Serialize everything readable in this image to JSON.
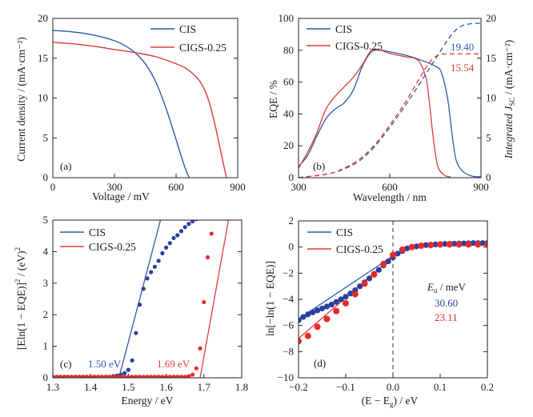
{
  "chart_data": [
    {
      "panel_label": "(a)",
      "type": "line",
      "xlabel": "Voltage / mV",
      "ylabel": "Current density / (mA·cm⁻²)",
      "xlim": [
        0,
        900
      ],
      "ylim": [
        0,
        20
      ],
      "xticks": [
        0,
        300,
        600,
        900
      ],
      "yticks": [
        0,
        5,
        10,
        15,
        20
      ],
      "legend_position": "top-right",
      "series": [
        {
          "name": "CIS",
          "color": "#2a5aa8",
          "x": [
            0,
            100,
            200,
            300,
            350,
            400,
            450,
            500,
            550,
            600,
            630,
            650,
            665
          ],
          "y": [
            18.5,
            18.3,
            17.9,
            17.2,
            16.6,
            15.7,
            14.3,
            12.1,
            8.8,
            4.8,
            2.3,
            0.8,
            0
          ]
        },
        {
          "name": "CIGS-0.25",
          "color": "#e03a3a",
          "x": [
            0,
            100,
            200,
            300,
            400,
            500,
            600,
            650,
            700,
            730,
            760,
            790,
            810,
            830,
            845
          ],
          "y": [
            17.0,
            16.8,
            16.5,
            16.1,
            15.7,
            15.2,
            14.3,
            13.7,
            12.6,
            11.5,
            9.6,
            6.6,
            4.2,
            1.8,
            0
          ]
        }
      ]
    },
    {
      "panel_label": "(b)",
      "type": "line",
      "xlabel": "Wavelength / nm",
      "ylabel": "EQE / %",
      "y2label_main": "Integrated J",
      "y2label_sub": "SC",
      "y2label_unit": " / (mA·cm⁻²)",
      "xlim": [
        300,
        900
      ],
      "ylim": [
        0,
        100
      ],
      "y2lim": [
        0,
        20
      ],
      "xticks": [
        300,
        600,
        900
      ],
      "yticks": [
        0,
        20,
        40,
        60,
        80,
        100
      ],
      "y2ticks": [
        0,
        5,
        10,
        15,
        20
      ],
      "legend_position": "top-left",
      "annotations": [
        "19.40",
        "15.54"
      ],
      "series": [
        {
          "name": "CIS",
          "color": "#2a5aa8",
          "style": "solid",
          "x": [
            300,
            330,
            360,
            390,
            420,
            450,
            480,
            510,
            540,
            570,
            600,
            650,
            700,
            750,
            770,
            790,
            800,
            810,
            820,
            840,
            870,
            900
          ],
          "y": [
            7,
            14,
            26,
            37,
            43,
            47,
            55,
            70,
            79,
            80,
            79,
            77,
            74,
            70,
            66,
            50,
            35,
            20,
            10,
            4,
            1,
            0.5
          ]
        },
        {
          "name": "CIGS-0.25",
          "color": "#e03a3a",
          "style": "solid",
          "x": [
            300,
            330,
            360,
            390,
            420,
            450,
            480,
            510,
            540,
            570,
            600,
            650,
            680,
            700,
            720,
            730,
            740,
            750,
            760,
            780,
            800
          ],
          "y": [
            6,
            16,
            28,
            43,
            51,
            57,
            63,
            71,
            80,
            80,
            78,
            76,
            75,
            72,
            62,
            48,
            30,
            15,
            6,
            1.5,
            0.5
          ]
        },
        {
          "name": "",
          "color": "#2a5aa8",
          "style": "dashed",
          "axis": "right",
          "x": [
            300,
            400,
            450,
            500,
            550,
            600,
            650,
            700,
            750,
            800,
            830,
            860,
            900
          ],
          "y": [
            0,
            0.5,
            1.1,
            2.1,
            3.9,
            6.3,
            9.0,
            11.9,
            14.9,
            17.8,
            18.9,
            19.3,
            19.4
          ]
        },
        {
          "name": "",
          "color": "#e03a3a",
          "style": "dashed",
          "axis": "right",
          "x": [
            300,
            400,
            450,
            500,
            550,
            600,
            650,
            700,
            720,
            740,
            760,
            780,
            900
          ],
          "y": [
            0,
            0.5,
            1.2,
            2.3,
            4.1,
            6.6,
            9.4,
            12.6,
            13.9,
            14.9,
            15.4,
            15.54,
            15.54
          ]
        }
      ]
    },
    {
      "panel_label": "(c)",
      "type": "scatter",
      "xlabel": "Energy / eV",
      "ylabel_pre": "[E",
      "ylabel_ln": "ln(1 − EQE)]",
      "ylabel_sup1": "2",
      "ylabel_unit": " / (eV)",
      "ylabel_sup2": "2",
      "xlim": [
        1.3,
        1.8
      ],
      "ylim": [
        0,
        5
      ],
      "xticks": [
        1.3,
        1.4,
        1.5,
        1.6,
        1.7,
        1.8
      ],
      "yticks": [
        0,
        1,
        2,
        3,
        4,
        5
      ],
      "legend_position": "top-left",
      "annotations": [
        "1.50 eV",
        "1.69 eV"
      ],
      "series": [
        {
          "name": "CIS",
          "color": "#2a3f9e",
          "x": [
            1.3,
            1.31,
            1.32,
            1.33,
            1.34,
            1.35,
            1.36,
            1.37,
            1.38,
            1.39,
            1.4,
            1.41,
            1.42,
            1.43,
            1.44,
            1.45,
            1.46,
            1.47,
            1.48,
            1.49,
            1.5,
            1.51,
            1.52,
            1.53,
            1.54,
            1.55,
            1.56,
            1.57,
            1.58,
            1.59,
            1.6,
            1.61,
            1.62,
            1.63,
            1.64,
            1.65,
            1.66,
            1.67,
            1.68,
            1.69,
            1.7,
            1.71,
            1.72
          ],
          "y": [
            0.03,
            0.03,
            0.03,
            0.03,
            0.03,
            0.03,
            0.03,
            0.03,
            0.03,
            0.03,
            0.03,
            0.03,
            0.03,
            0.03,
            0.03,
            0.03,
            0.05,
            0.07,
            0.1,
            0.15,
            0.25,
            0.55,
            1.42,
            2.32,
            2.82,
            3.15,
            3.35,
            3.52,
            3.71,
            3.95,
            4.13,
            4.27,
            4.43,
            4.52,
            4.65,
            4.78,
            4.88,
            4.96,
            5.03,
            5.06,
            5.08,
            5.09,
            5.1
          ]
        },
        {
          "name": "CIGS-0.25",
          "color": "#e82a2a",
          "x": [
            1.3,
            1.31,
            1.32,
            1.33,
            1.34,
            1.35,
            1.36,
            1.37,
            1.38,
            1.39,
            1.4,
            1.41,
            1.42,
            1.43,
            1.44,
            1.45,
            1.46,
            1.47,
            1.48,
            1.49,
            1.5,
            1.51,
            1.52,
            1.53,
            1.54,
            1.55,
            1.56,
            1.57,
            1.58,
            1.59,
            1.6,
            1.61,
            1.62,
            1.63,
            1.64,
            1.65,
            1.66,
            1.67,
            1.68,
            1.69,
            1.7,
            1.71,
            1.72,
            1.73,
            1.74,
            1.75
          ],
          "y": [
            0.03,
            0.03,
            0.03,
            0.03,
            0.03,
            0.03,
            0.03,
            0.03,
            0.03,
            0.03,
            0.03,
            0.03,
            0.03,
            0.03,
            0.03,
            0.03,
            0.03,
            0.03,
            0.03,
            0.03,
            0.03,
            0.03,
            0.03,
            0.03,
            0.03,
            0.03,
            0.03,
            0.03,
            0.03,
            0.03,
            0.03,
            0.03,
            0.03,
            0.03,
            0.03,
            0.03,
            0.05,
            0.1,
            0.3,
            0.93,
            2.4,
            3.82,
            4.57,
            5.06,
            5.1,
            5.1
          ]
        }
      ],
      "fits": [
        {
          "color": "#2a5aa8",
          "x": [
            1.475,
            1.585
          ],
          "y": [
            0,
            5
          ]
        },
        {
          "color": "#e03a3a",
          "x": [
            1.69,
            1.765
          ],
          "y": [
            0,
            5
          ]
        }
      ]
    },
    {
      "panel_label": "(d)",
      "type": "scatter",
      "xlabel_pre": "(E − E",
      "xlabel_sub": "g",
      "xlabel_post": ") / eV",
      "ylabel": "ln[−ln(1 − EQE)]",
      "xlim": [
        -0.2,
        0.2
      ],
      "ylim": [
        -10,
        2
      ],
      "xticks": [
        -0.2,
        -0.1,
        0.0,
        0.1,
        0.2
      ],
      "xtick_labels": [
        "−0.2",
        "−0.1",
        "0.0",
        "0.1",
        "0.2"
      ],
      "yticks": [
        -10,
        -8,
        -6,
        -4,
        -2,
        0,
        2
      ],
      "ytick_labels": [
        "−10",
        "−8",
        "−6",
        "−4",
        "−2",
        "0",
        "2"
      ],
      "legend_position": "top-left",
      "eu_label_main": "E",
      "eu_label_sub": "u",
      "eu_label_unit": " / meV",
      "annotations": [
        "30.60",
        "23.11"
      ],
      "series": [
        {
          "name": "CIS",
          "color": "#2a3f9e",
          "x": [
            -0.2,
            -0.19,
            -0.18,
            -0.17,
            -0.16,
            -0.15,
            -0.14,
            -0.13,
            -0.12,
            -0.11,
            -0.1,
            -0.09,
            -0.08,
            -0.07,
            -0.06,
            -0.05,
            -0.04,
            -0.03,
            -0.02,
            -0.01,
            0.0,
            0.01,
            0.02,
            0.03,
            0.04,
            0.05,
            0.06,
            0.07,
            0.08,
            0.09,
            0.1,
            0.11,
            0.12,
            0.13,
            0.14,
            0.15,
            0.16,
            0.17,
            0.18,
            0.19,
            0.2
          ],
          "y": [
            -5.6,
            -5.35,
            -5.15,
            -5.0,
            -4.85,
            -4.7,
            -4.55,
            -4.4,
            -4.2,
            -4.0,
            -3.8,
            -3.55,
            -3.3,
            -3.0,
            -2.7,
            -2.4,
            -2.05,
            -1.75,
            -1.4,
            -1.1,
            -0.8,
            -0.5,
            -0.3,
            -0.1,
            0.0,
            0.05,
            0.1,
            0.15,
            0.18,
            0.2,
            0.22,
            0.24,
            0.25,
            0.26,
            0.27,
            0.28,
            0.29,
            0.3,
            0.3,
            0.3,
            0.3
          ]
        },
        {
          "name": "CIGS-0.25",
          "color": "#e82a2a",
          "x": [
            -0.2,
            -0.18,
            -0.16,
            -0.14,
            -0.12,
            -0.1,
            -0.08,
            -0.06,
            -0.04,
            -0.02,
            0.0,
            0.02,
            0.04,
            0.06,
            0.08,
            0.1,
            0.12,
            0.14,
            0.16,
            0.18,
            0.2
          ],
          "y": [
            -7.2,
            -6.8,
            -6.1,
            -5.5,
            -4.9,
            -4.3,
            -3.6,
            -2.8,
            -2.1,
            -1.3,
            -0.6,
            -0.2,
            0.0,
            0.1,
            0.15,
            0.2,
            0.2,
            0.2,
            0.2,
            0.2,
            0.2
          ]
        }
      ],
      "fits": [
        {
          "color": "#2a5aa8",
          "x": [
            -0.2,
            -0.005
          ],
          "y": [
            -5.5,
            -0.8
          ]
        },
        {
          "color": "#e03a3a",
          "x": [
            -0.2,
            -0.005
          ],
          "y": [
            -7.0,
            -0.9
          ]
        }
      ]
    }
  ]
}
